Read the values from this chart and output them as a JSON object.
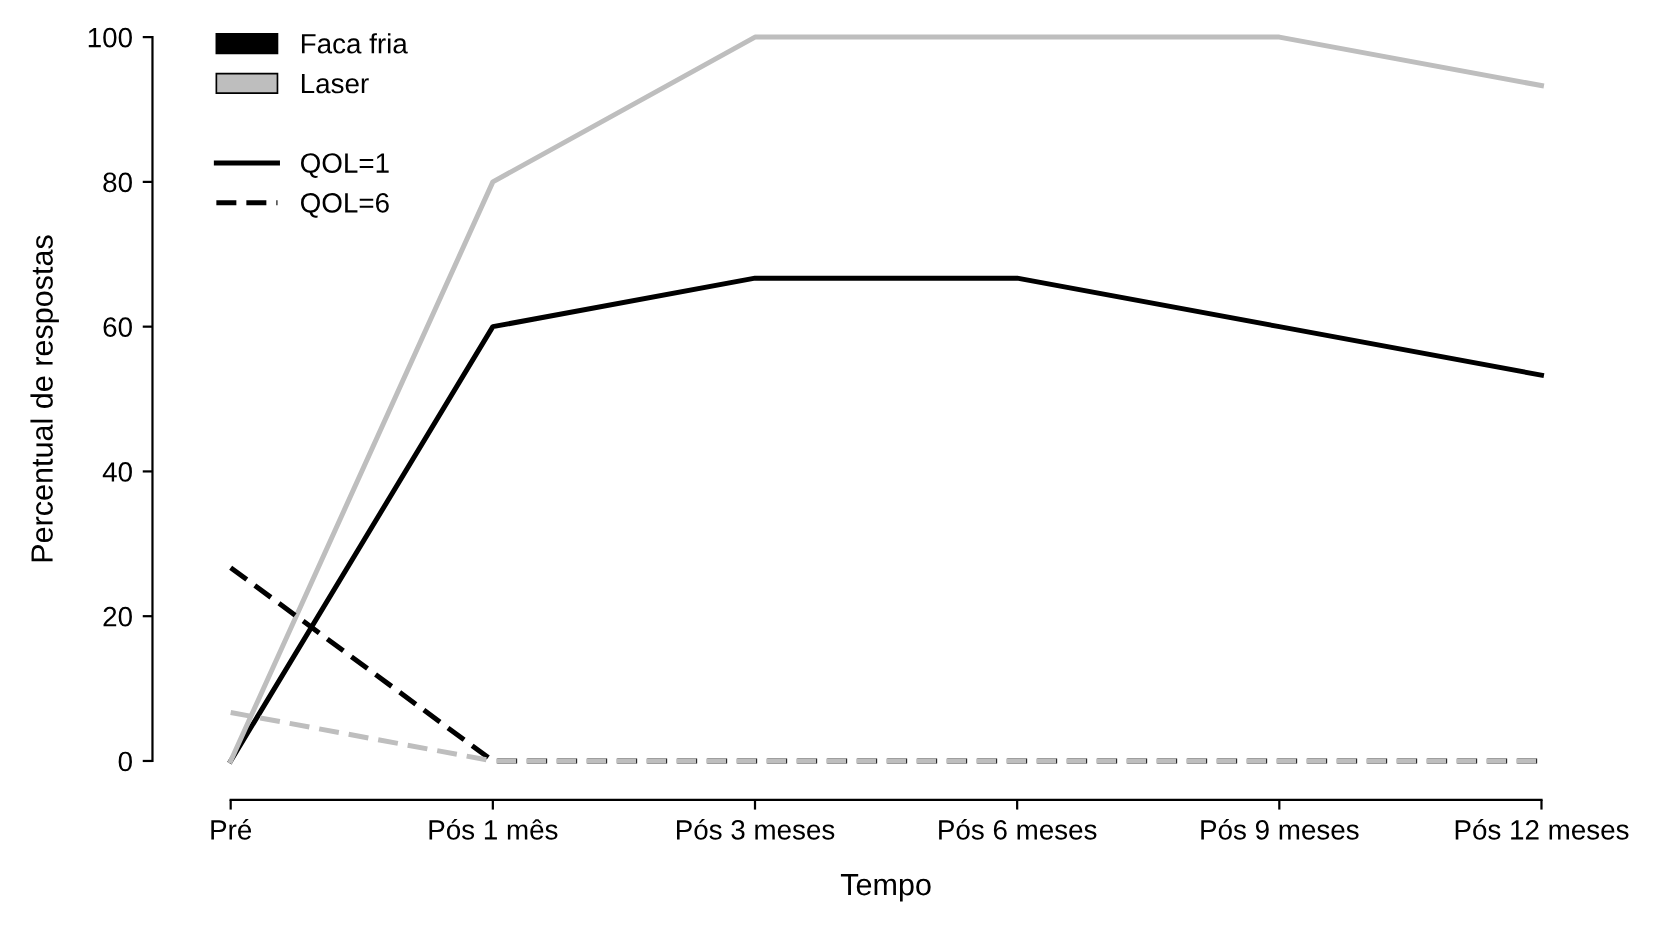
{
  "chart_data": {
    "type": "line",
    "xlabel": "Tempo",
    "ylabel": "Percentual de respostas",
    "categories": [
      "Pré",
      "Pós 1 mês",
      "Pós 3 meses",
      "Pós 6 meses",
      "Pós 9 meses",
      "Pós 12 meses"
    ],
    "series": [
      {
        "name": "Faca fria",
        "color": "#000000",
        "line_style": "solid",
        "values": [
          0,
          60,
          66.7,
          66.7,
          60,
          53.3
        ]
      },
      {
        "name": "Laser",
        "color": "#bebebe",
        "line_style": "solid",
        "values": [
          0,
          80,
          100,
          100,
          100,
          93.3
        ]
      },
      {
        "color": "#000000",
        "line_style": "dashed",
        "values": [
          26.7,
          0,
          0,
          0,
          0,
          0
        ]
      },
      {
        "color": "#bebebe",
        "line_style": "dashed",
        "values": [
          6.7,
          0,
          0,
          0,
          0,
          0
        ]
      }
    ],
    "annotations": [
      "QOL=1",
      "QOL=6"
    ],
    "ylim": [
      0,
      100
    ],
    "yticks": [
      0,
      20,
      40,
      60,
      80,
      100
    ],
    "grid": false,
    "legend": "top left"
  }
}
